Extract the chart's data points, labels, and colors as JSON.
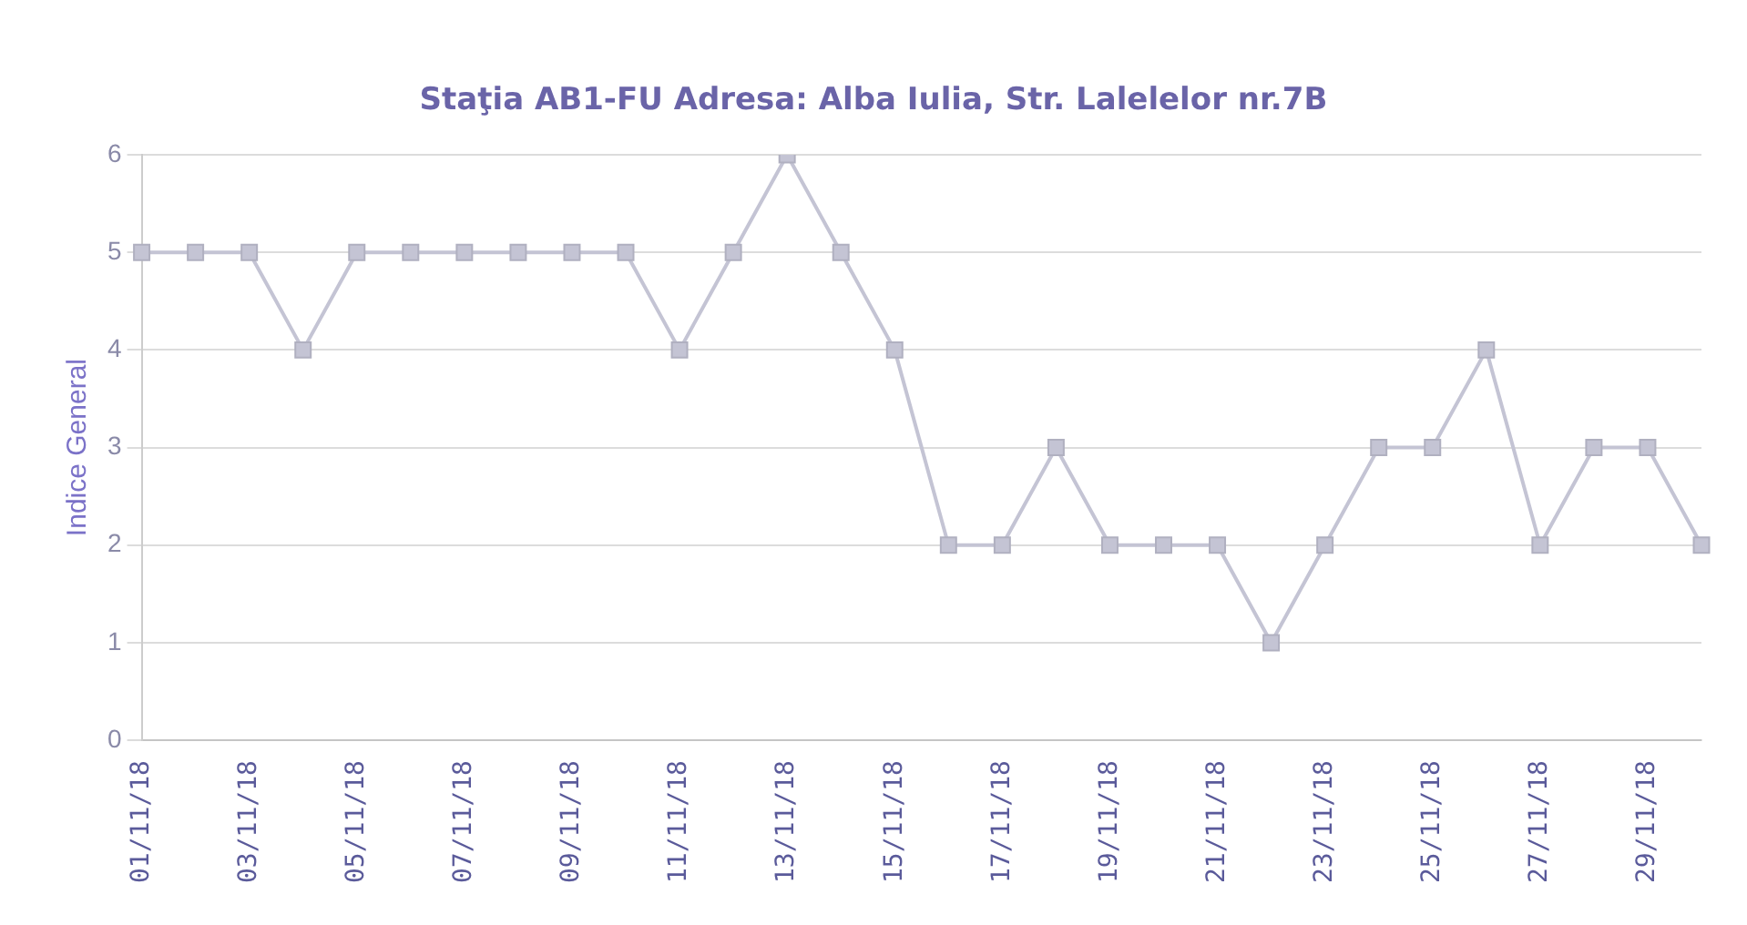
{
  "chart_data": {
    "type": "line",
    "title": "Staţia AB1-FU  Adresa: Alba Iulia, Str. Lalelelor nr.7B",
    "ylabel": "Indice General",
    "categories": [
      "01/11/18",
      null,
      "03/11/18",
      null,
      "05/11/18",
      null,
      "07/11/18",
      null,
      "09/11/18",
      null,
      "11/11/18",
      null,
      "13/11/18",
      null,
      "15/11/18",
      null,
      "17/11/18",
      null,
      "19/11/18",
      null,
      "21/11/18",
      null,
      "23/11/18",
      null,
      "25/11/18",
      null,
      "27/11/18",
      null,
      "29/11/18",
      null
    ],
    "series": [
      {
        "color": "#c4c4d4",
        "values": [
          5,
          5,
          5,
          4,
          5,
          5,
          5,
          5,
          5,
          5,
          4,
          5,
          6,
          5,
          4,
          2,
          2,
          3,
          2,
          2,
          2,
          1,
          2,
          3,
          3,
          4,
          2,
          3,
          3,
          2
        ]
      }
    ],
    "ylim": [
      0,
      6
    ],
    "yticks": [
      0,
      1,
      2,
      3,
      4,
      5,
      6
    ],
    "grid": "y",
    "legend": false,
    "marker": "square",
    "line_style": "solid"
  }
}
